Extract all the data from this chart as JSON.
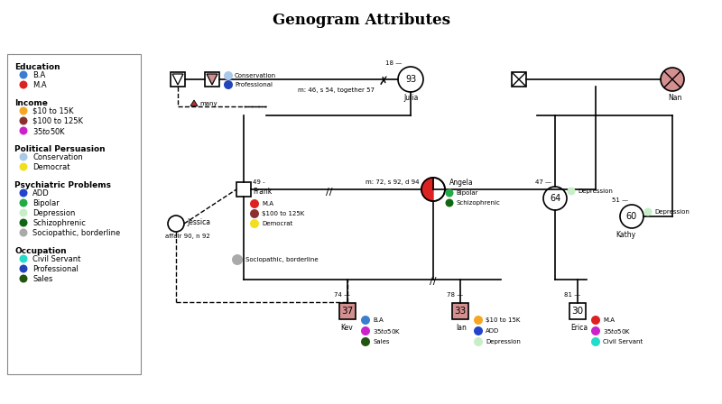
{
  "title": "Genogram Attributes",
  "background": "#ffffff",
  "legend": {
    "Education": [
      {
        "color": "#3a7ecf",
        "label": "B.A"
      },
      {
        "color": "#dd2222",
        "label": "M.A"
      }
    ],
    "Income": [
      {
        "color": "#f5a623",
        "label": "$10 to 15K"
      },
      {
        "color": "#8b3030",
        "label": "$100 to 125K"
      },
      {
        "color": "#cc22cc",
        "label": "$35 to $50K"
      }
    ],
    "Political Persuasion": [
      {
        "color": "#aac8e8",
        "label": "Conservation"
      },
      {
        "color": "#f0e020",
        "label": "Democrat"
      }
    ],
    "Psychiatric Problems": [
      {
        "color": "#2244cc",
        "label": "ADD"
      },
      {
        "color": "#22aa44",
        "label": "Bipolar"
      },
      {
        "color": "#c8eec8",
        "label": "Depression"
      },
      {
        "color": "#116611",
        "label": "Schizophrenic"
      },
      {
        "color": "#aaaaaa",
        "label": "Sociopathic, borderline"
      }
    ],
    "Occupation": [
      {
        "color": "#22ddcc",
        "label": "Civil Servant"
      },
      {
        "color": "#2244bb",
        "label": "Professional"
      },
      {
        "color": "#225511",
        "label": "Sales"
      }
    ]
  }
}
